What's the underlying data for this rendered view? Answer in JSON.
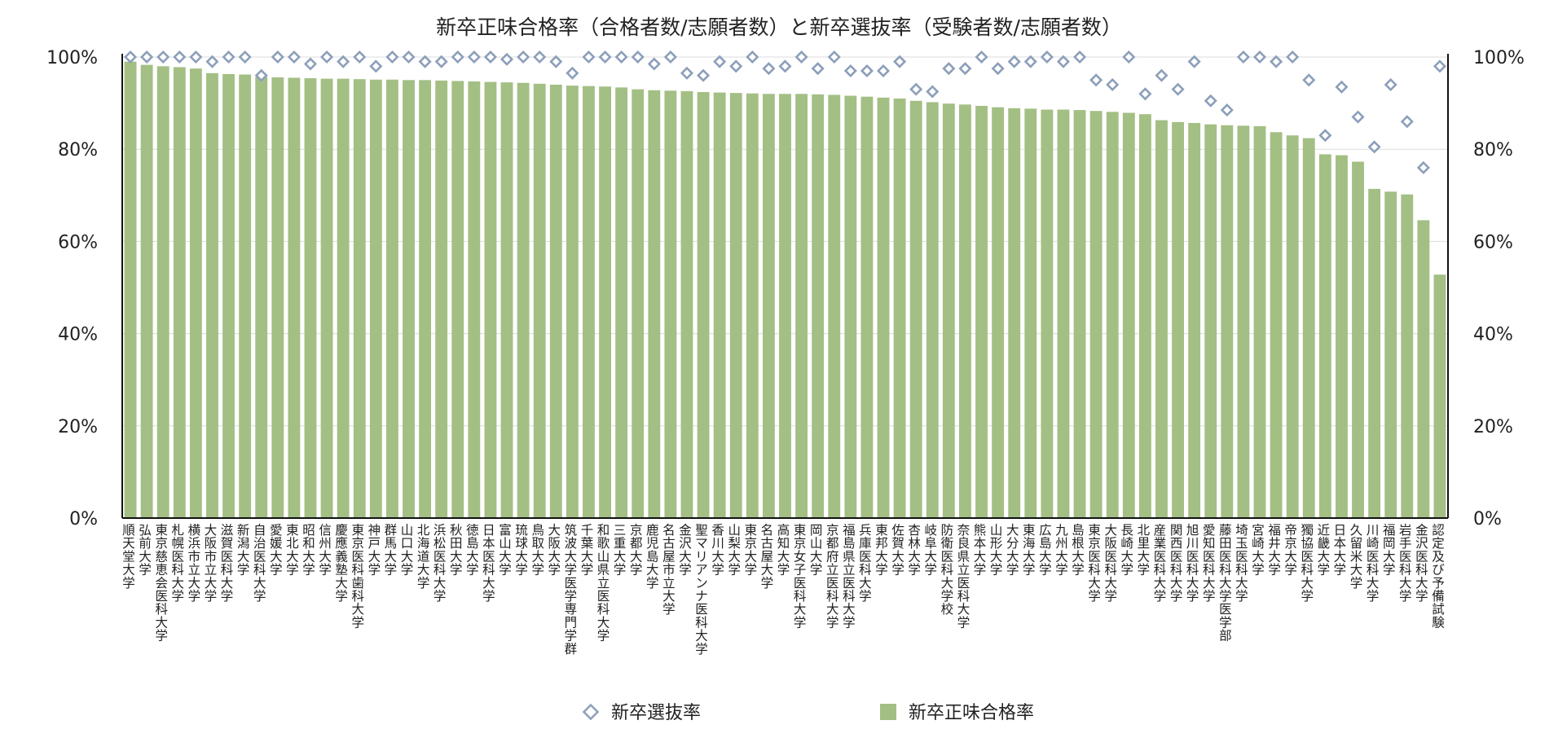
{
  "chart_data": {
    "type": "bar",
    "title": "新卒正味合格率（合格者数/志願者数）と新卒選抜率（受験者数/志願者数）",
    "ylim": [
      0,
      100
    ],
    "y_ticks": [
      "0%",
      "20%",
      "40%",
      "60%",
      "80%",
      "100%"
    ],
    "y2_ticks": [
      "0%",
      "20%",
      "40%",
      "60%",
      "80%",
      "100%"
    ],
    "grid": true,
    "legend_position": "bottom",
    "colors": {
      "bar": "#a3bf84",
      "marker": "#8c9fba"
    },
    "categories": [
      "順天堂大学",
      "弘前大学",
      "東京慈恵会医科大学",
      "札幌医科大学",
      "横浜市立大学",
      "大阪市立大学",
      "滋賀医科大学",
      "新潟大学",
      "自治医科大学",
      "愛媛大学",
      "東北大学",
      "昭和大学",
      "信州大学",
      "慶應義塾大学",
      "東京医科歯科大学",
      "神戸大学",
      "群馬大学",
      "山口大学",
      "北海道大学",
      "浜松医科大学",
      "秋田大学",
      "徳島大学",
      "日本医科大学",
      "富山大学",
      "琉球大学",
      "鳥取大学",
      "大阪大学",
      "筑波大学医学専門学群",
      "千葉大学",
      "和歌山県立医科大学",
      "三重大学",
      "京都大学",
      "鹿児島大学",
      "名古屋市立大学",
      "金沢大学",
      "聖マリアンナ医科大学",
      "香川大学",
      "山梨大学",
      "東京大学",
      "名古屋大学",
      "高知大学",
      "東京女子医科大学",
      "岡山大学",
      "京都府立医科大学",
      "福島県立医科大学",
      "兵庫医科大学",
      "東邦大学",
      "佐賀大学",
      "杏林大学",
      "岐阜大学",
      "防衛医科大学校",
      "奈良県立医科大学",
      "熊本大学",
      "山形大学",
      "大分大学",
      "東海大学",
      "広島大学",
      "九州大学",
      "島根大学",
      "東京医科大学",
      "大阪医科大学",
      "長崎大学",
      "北里大学",
      "産業医科大学",
      "関西医科大学",
      "旭川医科大学",
      "愛知医科大学",
      "藤田医科大学医学部",
      "埼玉医科大学",
      "宮崎大学",
      "福井大学",
      "帝京大学",
      "獨協医科大学",
      "近畿大学",
      "日本大学",
      "久留米大学",
      "川崎医科大学",
      "福岡大学",
      "岩手医科大学",
      "金沢医科大学",
      "認定及び予備試験"
    ],
    "series": [
      {
        "name": "新卒正味合格率",
        "kind": "bar",
        "values": [
          99.0,
          98.3,
          98.0,
          97.8,
          97.5,
          96.5,
          96.3,
          96.2,
          95.7,
          95.6,
          95.5,
          95.4,
          95.3,
          95.3,
          95.2,
          95.1,
          95.1,
          95.0,
          95.0,
          94.9,
          94.8,
          94.7,
          94.6,
          94.5,
          94.4,
          94.2,
          94.0,
          93.8,
          93.7,
          93.6,
          93.4,
          93.0,
          92.8,
          92.7,
          92.6,
          92.4,
          92.3,
          92.2,
          92.1,
          92.0,
          92.0,
          92.0,
          91.9,
          91.8,
          91.6,
          91.4,
          91.2,
          91.0,
          90.5,
          90.2,
          89.9,
          89.7,
          89.4,
          89.1,
          88.9,
          88.8,
          88.6,
          88.6,
          88.5,
          88.3,
          88.1,
          87.9,
          87.6,
          86.3,
          85.9,
          85.7,
          85.4,
          85.2,
          85.1,
          85.0,
          83.7,
          83.0,
          82.4,
          78.9,
          78.7,
          77.3,
          71.4,
          70.8,
          70.2,
          64.6,
          52.8
        ]
      },
      {
        "name": "新卒選抜率",
        "kind": "marker",
        "values": [
          100,
          100,
          100,
          100,
          100,
          99,
          100,
          100,
          96,
          100,
          100,
          98.5,
          100,
          99,
          100,
          98,
          100,
          100,
          99,
          99,
          100,
          100,
          100,
          99.5,
          100,
          100,
          99,
          96.5,
          100,
          100,
          100,
          100,
          98.5,
          100,
          96.5,
          96,
          99,
          98,
          100,
          97.5,
          98,
          100,
          97.5,
          100,
          97,
          97,
          97,
          99,
          93,
          92.5,
          97.5,
          97.5,
          100,
          97.5,
          99,
          99,
          100,
          99,
          100,
          95,
          94,
          100,
          92,
          96,
          93,
          99,
          90.5,
          88.5,
          100,
          100,
          99,
          100,
          95,
          83,
          93.5,
          87,
          80.5,
          94,
          86,
          76,
          98
        ]
      }
    ]
  }
}
